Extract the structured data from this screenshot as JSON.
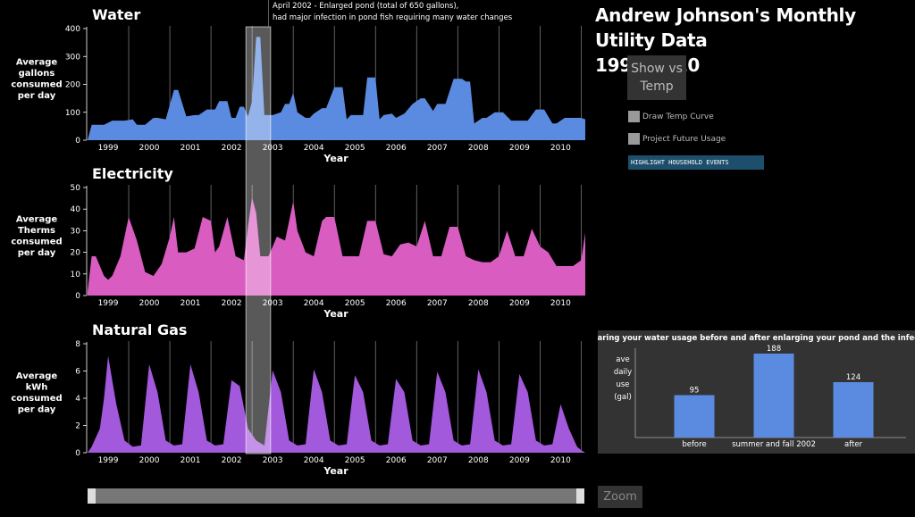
{
  "header": {
    "title_line1": "Andrew Johnson's Monthly Utility Data",
    "title_line2": "1998-2010"
  },
  "controls": {
    "show_vs_temp": "Show vs\nTemp",
    "draw_temp_curve": "Draw Temp Curve",
    "project_future_usage": "Project Future Usage",
    "highlight_events": "HIGHLIGHT HOUSEHOLD EVENTS",
    "zoom": "Zoom"
  },
  "annotation": {
    "line1": "April 2002 - Enlarged pond (total of 650 gallons),",
    "line2": "had major infection in pond fish requiring many water changes"
  },
  "colors": {
    "water": "#5b8be0",
    "electricity": "#d95cc0",
    "gas": "#a259dc",
    "comparison_bar": "#5b8be0"
  },
  "chart_data": [
    {
      "type": "area",
      "title": "Water",
      "ylabel": "Average gallons consumed per day",
      "xlabel": "Year",
      "ylim": [
        0,
        400
      ],
      "yticks": [
        "0",
        "100",
        "200",
        "300",
        "400"
      ],
      "xticks": [
        "1999",
        "2000",
        "2001",
        "2002",
        "2003",
        "2004",
        "2005",
        "2006",
        "2007",
        "2008",
        "2009",
        "2010"
      ],
      "xlim": [
        1998.5,
        2010.6
      ],
      "series": [
        {
          "x": [
            1998.5,
            1998.6,
            1998.7,
            1998.9,
            1999.1,
            1999.2,
            1999.4,
            1999.6,
            1999.7,
            1999.9,
            2000.1,
            2000.2,
            2000.4,
            2000.6,
            2000.7,
            2000.9,
            2001.1,
            2001.2,
            2001.4,
            2001.6,
            2001.7,
            2001.9,
            2002.0,
            2002.1,
            2002.2,
            2002.3,
            2002.4,
            2002.5,
            2002.6,
            2002.7,
            2002.8,
            2002.9,
            2003.0,
            2003.2,
            2003.3,
            2003.4,
            2003.5,
            2003.6,
            2003.8,
            2003.9,
            2004.0,
            2004.2,
            2004.3,
            2004.5,
            2004.7,
            2004.8,
            2004.9,
            2005.1,
            2005.2,
            2005.3,
            2005.5,
            2005.6,
            2005.7,
            2005.9,
            2006.0,
            2006.2,
            2006.4,
            2006.6,
            2006.7,
            2006.9,
            2007.0,
            2007.2,
            2007.4,
            2007.6,
            2007.7,
            2007.8,
            2007.9,
            2008.1,
            2008.2,
            2008.4,
            2008.6,
            2008.8,
            2009.0,
            2009.2,
            2009.4,
            2009.6,
            2009.8,
            2009.9,
            2010.1,
            2010.3,
            2010.5,
            2010.6
          ],
          "y": [
            0,
            55,
            55,
            55,
            70,
            70,
            70,
            75,
            55,
            55,
            80,
            80,
            75,
            180,
            180,
            85,
            90,
            90,
            110,
            110,
            140,
            140,
            80,
            80,
            120,
            120,
            85,
            140,
            370,
            370,
            90,
            90,
            90,
            100,
            130,
            130,
            170,
            100,
            80,
            80,
            95,
            115,
            115,
            190,
            190,
            75,
            90,
            90,
            90,
            225,
            225,
            75,
            90,
            95,
            80,
            95,
            130,
            150,
            150,
            105,
            130,
            130,
            220,
            220,
            210,
            210,
            60,
            80,
            80,
            100,
            100,
            70,
            70,
            70,
            110,
            110,
            60,
            60,
            80,
            80,
            80,
            75
          ]
        }
      ]
    },
    {
      "type": "area",
      "title": "Electricity",
      "ylabel": "Average Therms consumed per day",
      "xlabel": "Year",
      "ylim": [
        0,
        55
      ],
      "yticks": [
        "0",
        "10",
        "20",
        "30",
        "40",
        "50"
      ],
      "xticks": [
        "1999",
        "2000",
        "2001",
        "2002",
        "2003",
        "2004",
        "2005",
        "2006",
        "2007",
        "2008",
        "2009",
        "2010"
      ],
      "xlim": [
        1998.5,
        2010.6
      ],
      "series": [
        {
          "x": [
            1998.5,
            1998.6,
            1998.7,
            1998.9,
            1999.0,
            1999.1,
            1999.3,
            1999.5,
            1999.7,
            1999.9,
            2000.1,
            2000.3,
            2000.5,
            2000.6,
            2000.7,
            2000.9,
            2001.1,
            2001.3,
            2001.5,
            2001.6,
            2001.7,
            2001.9,
            2002.1,
            2002.3,
            2002.4,
            2002.5,
            2002.6,
            2002.7,
            2002.9,
            2003.1,
            2003.3,
            2003.5,
            2003.6,
            2003.8,
            2004.0,
            2004.2,
            2004.3,
            2004.5,
            2004.7,
            2004.9,
            2005.1,
            2005.3,
            2005.5,
            2005.7,
            2005.9,
            2006.1,
            2006.3,
            2006.5,
            2006.7,
            2006.9,
            2007.1,
            2007.3,
            2007.5,
            2007.7,
            2007.9,
            2008.1,
            2008.3,
            2008.5,
            2008.7,
            2008.9,
            2009.1,
            2009.3,
            2009.5,
            2009.7,
            2009.9,
            2010.1,
            2010.3,
            2010.5,
            2010.6
          ],
          "y": [
            2,
            20,
            20,
            10,
            8,
            10,
            20,
            40,
            28,
            12,
            10,
            16,
            30,
            40,
            22,
            22,
            24,
            40,
            38,
            22,
            25,
            40,
            20,
            18,
            35,
            50,
            42,
            20,
            20,
            30,
            28,
            48,
            33,
            22,
            20,
            38,
            40,
            40,
            20,
            20,
            20,
            38,
            38,
            21,
            20,
            26,
            27,
            25,
            38,
            20,
            20,
            35,
            35,
            20,
            18,
            17,
            17,
            20,
            33,
            20,
            20,
            34,
            25,
            22,
            15,
            15,
            15,
            18,
            32
          ]
        }
      ]
    },
    {
      "type": "area",
      "title": "Natural Gas",
      "ylabel": "Average kWh consumed per day",
      "xlabel": "Year",
      "ylim": [
        0,
        9
      ],
      "yticks": [
        "0",
        "2",
        "4",
        "6",
        "8"
      ],
      "xticks": [
        "1999",
        "2000",
        "2001",
        "2002",
        "2003",
        "2004",
        "2005",
        "2006",
        "2007",
        "2008",
        "2009",
        "2010"
      ],
      "xlim": [
        1998.5,
        2010.6
      ],
      "series": [
        {
          "x": [
            1998.5,
            1998.6,
            1998.8,
            1998.9,
            1999.0,
            1999.2,
            1999.4,
            1999.6,
            1999.8,
            2000.0,
            2000.2,
            2000.4,
            2000.6,
            2000.8,
            2001.0,
            2001.2,
            2001.4,
            2001.6,
            2001.8,
            2002.0,
            2002.2,
            2002.4,
            2002.6,
            2002.8,
            2003.0,
            2003.2,
            2003.4,
            2003.6,
            2003.8,
            2004.0,
            2004.2,
            2004.4,
            2004.6,
            2004.8,
            2005.0,
            2005.2,
            2005.4,
            2005.6,
            2005.8,
            2006.0,
            2006.2,
            2006.4,
            2006.6,
            2006.8,
            2007.0,
            2007.2,
            2007.4,
            2007.6,
            2007.8,
            2008.0,
            2008.2,
            2008.4,
            2008.6,
            2008.8,
            2009.0,
            2009.2,
            2009.4,
            2009.6,
            2009.8,
            2010.0,
            2010.2,
            2010.4,
            2010.5,
            2010.6
          ],
          "y": [
            0,
            0.5,
            2,
            4.5,
            8,
            4,
            1,
            0.5,
            0.6,
            7.3,
            5,
            1,
            0.6,
            0.7,
            7.3,
            5,
            1,
            0.6,
            0.7,
            6,
            5.5,
            2,
            1,
            0.6,
            6.8,
            5,
            1,
            0.6,
            0.7,
            6.9,
            5,
            1,
            0.6,
            0.7,
            6.4,
            5,
            1,
            0.6,
            0.7,
            6.1,
            5,
            1,
            0.6,
            0.7,
            6.7,
            5,
            1,
            0.6,
            0.7,
            6.9,
            5,
            1,
            0.6,
            0.7,
            6.5,
            5,
            1,
            0.6,
            0.7,
            4,
            2,
            0.5,
            0.2,
            0
          ]
        }
      ]
    },
    {
      "type": "bar",
      "title": "Comparing your water usage before and after enlarging your pond and the infection:",
      "ylabel": "ave daily use (gal)",
      "categories": [
        "before",
        "summer and fall 2002",
        "after"
      ],
      "values": [
        95,
        188,
        124
      ],
      "data_labels": [
        "95",
        "188",
        "124"
      ],
      "ylim": [
        0,
        200
      ]
    }
  ]
}
